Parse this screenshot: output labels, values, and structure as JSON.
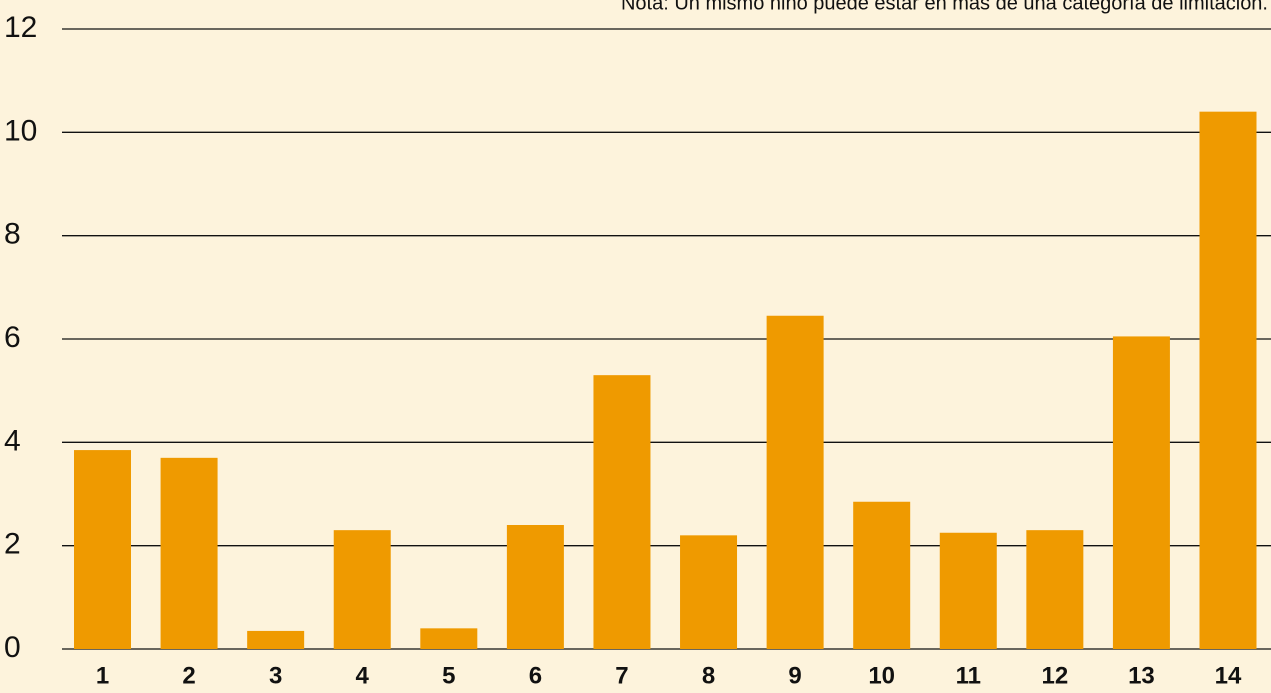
{
  "chart_data": {
    "type": "bar",
    "annotation": "Nota: Un mismo niño puede estar en más de una categoría de limitación.",
    "categories": [
      "1",
      "2",
      "3",
      "4",
      "5",
      "6",
      "7",
      "8",
      "9",
      "10",
      "11",
      "12",
      "13",
      "14"
    ],
    "values": [
      3.85,
      3.7,
      0.35,
      2.3,
      0.4,
      2.4,
      5.3,
      2.2,
      6.45,
      2.85,
      2.25,
      2.3,
      6.05,
      10.4
    ],
    "color": "#ef9a00",
    "ylim": [
      0,
      12
    ],
    "yticks": [
      0,
      2,
      4,
      6,
      8,
      10,
      12
    ],
    "grid": true
  }
}
